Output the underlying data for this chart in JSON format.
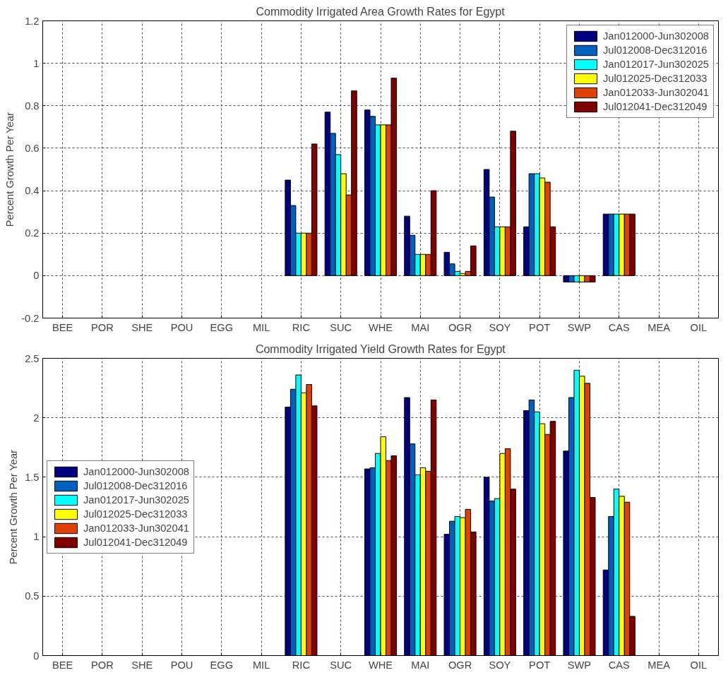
{
  "chart_data": [
    {
      "type": "bar",
      "title": "Commodity Irrigated Area Growth Rates for Egypt",
      "ylabel": "Percent Growth Per Year",
      "categories": [
        "BEE",
        "POR",
        "SHE",
        "POU",
        "EGG",
        "MIL",
        "RIC",
        "SUC",
        "WHE",
        "MAI",
        "OGR",
        "SOY",
        "POT",
        "SWP",
        "CAS",
        "MEA",
        "OIL"
      ],
      "ylim": [
        -0.2,
        1.2
      ],
      "yticks": [
        -0.2,
        0,
        0.2,
        0.4,
        0.6,
        0.8,
        1,
        1.2
      ],
      "grid": true,
      "legend": "top right",
      "series": [
        {
          "name": "Jan012000-Jun302008",
          "color": "#000080",
          "values": [
            null,
            null,
            null,
            null,
            null,
            null,
            0.45,
            0.77,
            0.78,
            0.28,
            0.11,
            0.5,
            0.23,
            -0.03,
            0.29,
            null,
            null
          ]
        },
        {
          "name": "Jul012008-Dec312016",
          "color": "#0060c0",
          "values": [
            null,
            null,
            null,
            null,
            null,
            null,
            0.33,
            0.67,
            0.75,
            0.19,
            0.055,
            0.37,
            0.48,
            -0.03,
            0.29,
            null,
            null
          ]
        },
        {
          "name": "Jan012017-Jun302025",
          "color": "#00ffff",
          "values": [
            null,
            null,
            null,
            null,
            null,
            null,
            0.2,
            0.57,
            0.71,
            0.1,
            0.02,
            0.23,
            0.48,
            -0.03,
            0.29,
            null,
            null
          ]
        },
        {
          "name": "Jul012025-Dec312033",
          "color": "#ffff00",
          "values": [
            null,
            null,
            null,
            null,
            null,
            null,
            0.2,
            0.48,
            0.71,
            0.1,
            0.01,
            0.23,
            0.46,
            -0.03,
            0.29,
            null,
            null
          ]
        },
        {
          "name": "Jan012033-Jun302041",
          "color": "#e04000",
          "values": [
            null,
            null,
            null,
            null,
            null,
            null,
            0.2,
            0.38,
            0.71,
            0.1,
            0.02,
            0.23,
            0.44,
            -0.03,
            0.29,
            null,
            null
          ]
        },
        {
          "name": "Jul012041-Dec312049",
          "color": "#800000",
          "values": [
            null,
            null,
            null,
            null,
            null,
            null,
            0.62,
            0.87,
            0.93,
            0.4,
            0.14,
            0.68,
            0.23,
            -0.03,
            0.29,
            null,
            null
          ]
        }
      ]
    },
    {
      "type": "bar",
      "title": "Commodity Irrigated Yield Growth Rates for Egypt",
      "ylabel": "Percent Growth Per Year",
      "categories": [
        "BEE",
        "POR",
        "SHE",
        "POU",
        "EGG",
        "MIL",
        "RIC",
        "SUC",
        "WHE",
        "MAI",
        "OGR",
        "SOY",
        "POT",
        "SWP",
        "CAS",
        "MEA",
        "OIL"
      ],
      "ylim": [
        0,
        2.5
      ],
      "yticks": [
        0,
        0.5,
        1,
        1.5,
        2,
        2.5
      ],
      "grid": true,
      "legend": "left",
      "series": [
        {
          "name": "Jan012000-Jun302008",
          "color": "#000080",
          "values": [
            null,
            null,
            null,
            null,
            null,
            null,
            2.09,
            null,
            1.57,
            2.17,
            1.02,
            1.5,
            2.06,
            1.72,
            0.72,
            null,
            null
          ]
        },
        {
          "name": "Jul012008-Dec312016",
          "color": "#0060c0",
          "values": [
            null,
            null,
            null,
            null,
            null,
            null,
            2.24,
            null,
            1.58,
            1.78,
            1.13,
            1.3,
            2.15,
            2.17,
            1.17,
            null,
            null
          ]
        },
        {
          "name": "Jan012017-Jun302025",
          "color": "#00ffff",
          "values": [
            null,
            null,
            null,
            null,
            null,
            null,
            2.36,
            null,
            1.7,
            1.52,
            1.17,
            1.32,
            2.05,
            2.4,
            1.4,
            null,
            null
          ]
        },
        {
          "name": "Jul012025-Dec312033",
          "color": "#ffff00",
          "values": [
            null,
            null,
            null,
            null,
            null,
            null,
            2.21,
            null,
            1.84,
            1.58,
            1.16,
            1.7,
            1.95,
            2.35,
            1.34,
            null,
            null
          ]
        },
        {
          "name": "Jan012033-Jun302041",
          "color": "#e04000",
          "values": [
            null,
            null,
            null,
            null,
            null,
            null,
            2.28,
            null,
            1.64,
            1.55,
            1.23,
            1.74,
            1.86,
            2.29,
            1.29,
            null,
            null
          ]
        },
        {
          "name": "Jul012041-Dec312049",
          "color": "#800000",
          "values": [
            null,
            null,
            null,
            null,
            null,
            null,
            2.1,
            null,
            1.68,
            2.15,
            1.04,
            1.4,
            1.97,
            1.33,
            0.33,
            null,
            null
          ]
        }
      ]
    }
  ]
}
